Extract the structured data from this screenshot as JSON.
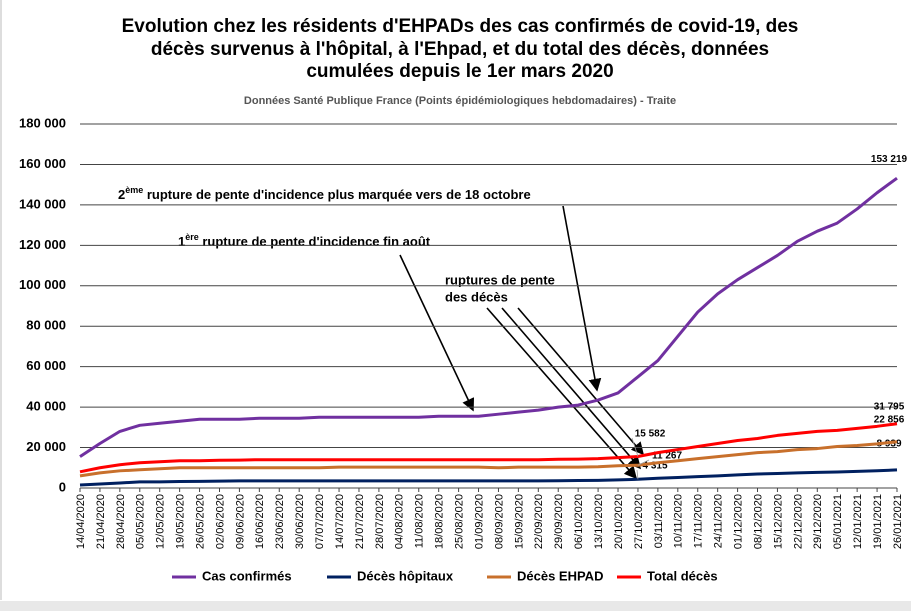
{
  "chart_data": {
    "type": "line",
    "title": [
      "Evolution chez les résidents d'EHPADs des cas confirmés de covid-19, des",
      "décès survenus à l'hôpital, à l'Ehpad, et du total des décès, données",
      "cumulées depuis le 1er mars 2020"
    ],
    "subtitle": "Données Santé Publique France (Points épidémiologiques hebdomadaires)  - Traite",
    "x": [
      "14/04/2020",
      "21/04/2020",
      "28/04/2020",
      "05/05/2020",
      "12/05/2020",
      "19/05/2020",
      "26/05/2020",
      "02/06/2020",
      "09/06/2020",
      "16/06/2020",
      "23/06/2020",
      "30/06/2020",
      "07/07/2020",
      "14/07/2020",
      "21/07/2020",
      "28/07/2020",
      "04/08/2020",
      "11/08/2020",
      "18/08/2020",
      "25/08/2020",
      "01/09/2020",
      "08/09/2020",
      "15/09/2020",
      "22/09/2020",
      "29/09/2020",
      "06/10/2020",
      "13/10/2020",
      "20/10/2020",
      "27/10/2020",
      "03/11/2020",
      "10/11/2020",
      "17/11/2020",
      "24/11/2020",
      "01/12/2020",
      "08/12/2020",
      "15/12/2020",
      "22/12/2020",
      "29/12/2020",
      "05/01/2021",
      "12/01/2021",
      "19/01/2021",
      "26/01/2021"
    ],
    "series": [
      {
        "name": "Cas confirmés",
        "color": "#7030a0",
        "values": [
          15500,
          22000,
          28000,
          31000,
          32000,
          33000,
          34000,
          34000,
          34000,
          34500,
          34500,
          34500,
          35000,
          35000,
          35000,
          35000,
          35000,
          35000,
          35500,
          35500,
          35500,
          36500,
          37500,
          38500,
          40000,
          41000,
          43500,
          47000,
          55000,
          63000,
          75000,
          87000,
          96000,
          103000,
          109000,
          115000,
          122000,
          127000,
          131000,
          138000,
          146000,
          153219
        ],
        "value_labels": [
          null,
          null,
          null,
          null,
          null,
          null,
          null,
          null,
          null,
          null,
          null,
          null,
          null,
          null,
          null,
          null,
          null,
          null,
          null,
          null,
          null,
          null,
          null,
          null,
          null,
          null,
          null,
          null,
          null,
          null,
          null,
          null,
          null,
          null,
          null,
          null,
          null,
          null,
          null,
          null,
          null,
          "153 219"
        ]
      },
      {
        "name": "Décès hôpitaux",
        "color": "#002060",
        "values": [
          1500,
          2000,
          2500,
          3000,
          3000,
          3200,
          3300,
          3400,
          3500,
          3500,
          3500,
          3500,
          3500,
          3500,
          3500,
          3500,
          3500,
          3500,
          3500,
          3500,
          3500,
          3500,
          3500,
          3500,
          3600,
          3700,
          3800,
          4000,
          4315,
          4800,
          5200,
          5600,
          6000,
          6500,
          6900,
          7200,
          7500,
          7700,
          7900,
          8200,
          8500,
          8939
        ],
        "value_labels": [
          null,
          null,
          null,
          null,
          null,
          null,
          null,
          null,
          null,
          null,
          null,
          null,
          null,
          null,
          null,
          null,
          null,
          null,
          null,
          null,
          null,
          null,
          null,
          null,
          null,
          null,
          null,
          null,
          "4 315",
          null,
          null,
          null,
          null,
          null,
          null,
          null,
          null,
          null,
          null,
          null,
          null,
          "8 939"
        ]
      },
      {
        "name": "Décès EHPAD",
        "color": "#c8702c",
        "values": [
          6000,
          7500,
          8500,
          9000,
          9500,
          10000,
          10000,
          10000,
          10000,
          10000,
          10000,
          10000,
          10000,
          10300,
          10300,
          10300,
          10300,
          10300,
          10300,
          10300,
          10300,
          10000,
          10300,
          10300,
          10300,
          10300,
          10500,
          11000,
          11267,
          12500,
          13500,
          14500,
          15500,
          16500,
          17500,
          18000,
          19000,
          19500,
          20500,
          21000,
          21800,
          22856
        ],
        "value_labels": [
          null,
          null,
          null,
          null,
          null,
          null,
          null,
          null,
          null,
          null,
          null,
          null,
          null,
          null,
          null,
          null,
          null,
          null,
          null,
          null,
          null,
          null,
          null,
          null,
          null,
          null,
          null,
          null,
          "11 267",
          null,
          null,
          null,
          null,
          null,
          null,
          null,
          null,
          null,
          null,
          null,
          null,
          "22 856"
        ]
      },
      {
        "name": "Total décès",
        "color": "#ff0000",
        "values": [
          8000,
          10000,
          11500,
          12500,
          13000,
          13500,
          13500,
          13700,
          13800,
          14000,
          14000,
          14000,
          14000,
          14000,
          14000,
          14000,
          14000,
          14000,
          14000,
          14000,
          14000,
          14000,
          14000,
          14000,
          14200,
          14300,
          14500,
          15000,
          15582,
          17500,
          19000,
          20500,
          22000,
          23500,
          24500,
          26000,
          27000,
          28000,
          28500,
          29500,
          30500,
          31795
        ],
        "value_labels": [
          null,
          null,
          null,
          null,
          null,
          null,
          null,
          null,
          null,
          null,
          null,
          null,
          null,
          null,
          null,
          null,
          null,
          null,
          null,
          null,
          null,
          null,
          null,
          null,
          null,
          null,
          null,
          null,
          "15 582",
          null,
          null,
          null,
          null,
          null,
          null,
          null,
          null,
          null,
          null,
          null,
          null,
          "31 795"
        ]
      }
    ],
    "ylim": [
      0,
      180000
    ],
    "yticks": [
      0,
      {
        "value": 20000,
        "label": "20 000"
      },
      {
        "value": 40000,
        "label": "40 000"
      },
      {
        "value": 60000,
        "label": "60 000"
      },
      {
        "value": 80000,
        "label": "80 000"
      },
      {
        "value": 100000,
        "label": "100 000"
      },
      {
        "value": 120000,
        "label": "120 000"
      },
      {
        "value": 140000,
        "label": "140 000"
      },
      {
        "value": 160000,
        "label": "160 000"
      },
      {
        "value": 180000,
        "label": "180 000"
      }
    ],
    "grid": true,
    "legend": "bottom",
    "annotations": [
      {
        "num": "2",
        "sup": "ème",
        "text": " rupture de pente d'incidence plus marquée vers de 18 octobre"
      },
      {
        "num": "1",
        "sup": "ère",
        "text": " rupture de pente d'incidence fin août"
      },
      {
        "lines": [
          "ruptures de pente",
          "des décès"
        ]
      }
    ]
  }
}
